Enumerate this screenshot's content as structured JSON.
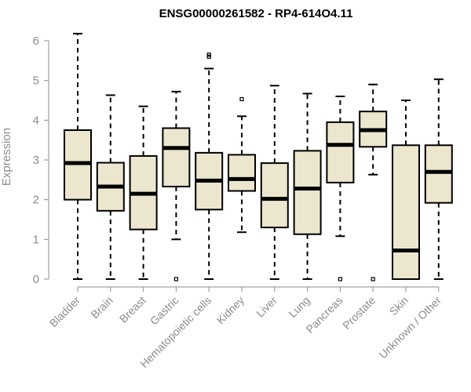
{
  "chart_data": {
    "type": "boxplot",
    "title": "ENSG00000261582 - RP4-614O4.11",
    "xlabel": "",
    "ylabel": "Expression",
    "ylim": [
      0,
      6
    ],
    "yticks": [
      0,
      1,
      2,
      3,
      4,
      5,
      6
    ],
    "grid": false,
    "box_fill": "#ede6cf",
    "stroke_color": "#000000",
    "axis_color": "#8c8c8c",
    "categories": [
      "Bladder",
      "Brain",
      "Breast",
      "Gastric",
      "Hematopoietic cells",
      "Kidney",
      "Liver",
      "Lung",
      "Pancreas",
      "Prostate",
      "Skin",
      "Unknown / Other"
    ],
    "boxes": [
      {
        "category": "Bladder",
        "whisker_low": 0.0,
        "q1": 2.0,
        "median": 2.92,
        "q3": 3.75,
        "whisker_high": 6.18,
        "outliers": []
      },
      {
        "category": "Brain",
        "whisker_low": 0.0,
        "q1": 1.72,
        "median": 2.33,
        "q3": 2.93,
        "whisker_high": 4.63,
        "outliers": []
      },
      {
        "category": "Breast",
        "whisker_low": 0.0,
        "q1": 1.25,
        "median": 2.15,
        "q3": 3.1,
        "whisker_high": 4.35,
        "outliers": []
      },
      {
        "category": "Gastric",
        "whisker_low": 1.0,
        "q1": 2.33,
        "median": 3.3,
        "q3": 3.8,
        "whisker_high": 4.72,
        "outliers": [
          0.0
        ]
      },
      {
        "category": "Hematopoietic cells",
        "whisker_low": 0.0,
        "q1": 1.75,
        "median": 2.48,
        "q3": 3.18,
        "whisker_high": 5.3,
        "outliers": [
          5.6,
          5.65
        ]
      },
      {
        "category": "Kidney",
        "whisker_low": 1.18,
        "q1": 2.22,
        "median": 2.52,
        "q3": 3.13,
        "whisker_high": 4.1,
        "outliers": [
          4.53
        ]
      },
      {
        "category": "Liver",
        "whisker_low": 0.0,
        "q1": 1.3,
        "median": 2.02,
        "q3": 2.92,
        "whisker_high": 4.87,
        "outliers": []
      },
      {
        "category": "Lung",
        "whisker_low": 0.0,
        "q1": 1.13,
        "median": 2.28,
        "q3": 3.23,
        "whisker_high": 4.67,
        "outliers": []
      },
      {
        "category": "Pancreas",
        "whisker_low": 1.08,
        "q1": 2.43,
        "median": 3.38,
        "q3": 3.95,
        "whisker_high": 4.6,
        "outliers": [
          0.0
        ]
      },
      {
        "category": "Prostate",
        "whisker_low": 2.63,
        "q1": 3.33,
        "median": 3.75,
        "q3": 4.22,
        "whisker_high": 4.9,
        "outliers": [
          0.0
        ]
      },
      {
        "category": "Skin",
        "whisker_low": 0.0,
        "q1": 0.0,
        "median": 0.72,
        "q3": 3.37,
        "whisker_high": 4.5,
        "outliers": []
      },
      {
        "category": "Unknown / Other",
        "whisker_low": 0.0,
        "q1": 1.92,
        "median": 2.7,
        "q3": 3.37,
        "whisker_high": 5.03,
        "outliers": []
      }
    ]
  }
}
